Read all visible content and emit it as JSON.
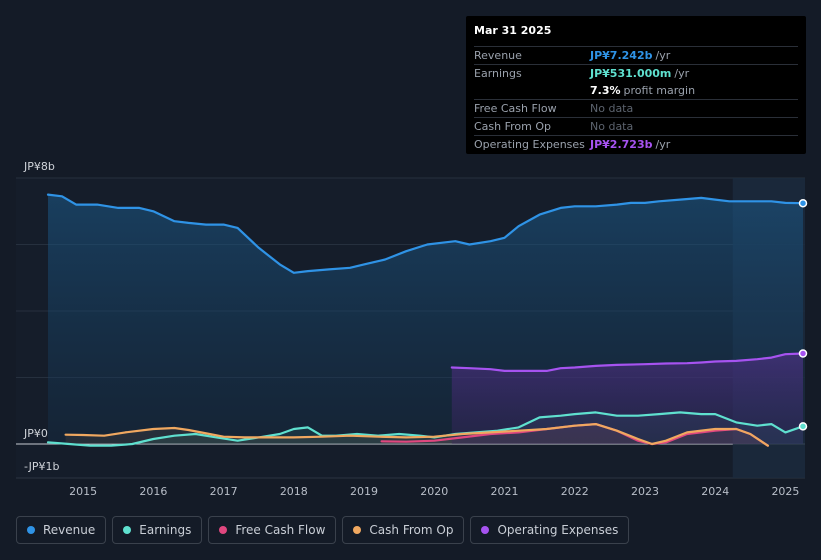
{
  "tooltip": {
    "date": "Mar 31 2025",
    "rows": [
      {
        "label": "Revenue",
        "value": "JP¥7.242b",
        "unit": "/yr",
        "color": "#2f93e6"
      },
      {
        "label": "Earnings",
        "value": "JP¥531.000m",
        "unit": "/yr",
        "color": "#5fe0cf"
      },
      {
        "margin": "7.3%",
        "margin_text": "profit margin"
      },
      {
        "label": "Free Cash Flow",
        "nodata": "No data"
      },
      {
        "label": "Cash From Op",
        "nodata": "No data"
      },
      {
        "label": "Operating Expenses",
        "value": "JP¥2.723b",
        "unit": "/yr",
        "color": "#a653f0"
      }
    ]
  },
  "axis": {
    "top_label": "JP¥8b",
    "zero_label": "JP¥0",
    "neg_label": "-JP¥1b"
  },
  "legend": [
    {
      "label": "Revenue",
      "color": "#2f93e6"
    },
    {
      "label": "Earnings",
      "color": "#5fe0cf"
    },
    {
      "label": "Free Cash Flow",
      "color": "#e0477f"
    },
    {
      "label": "Cash From Op",
      "color": "#f0a860"
    },
    {
      "label": "Operating Expenses",
      "color": "#a653f0"
    }
  ],
  "chart_data": {
    "type": "line",
    "title": "",
    "ylabel": "JP¥",
    "ylim": [
      -1,
      8
    ],
    "yticks": [
      "JP¥8b",
      "JP¥0",
      "-JP¥1b"
    ],
    "xticks": [
      "2015",
      "2016",
      "2017",
      "2018",
      "2019",
      "2020",
      "2021",
      "2022",
      "2023",
      "2024",
      "2025"
    ],
    "xlim": [
      2014.5,
      2025.25
    ],
    "highlight_from": 2024.25,
    "series": [
      {
        "name": "Revenue",
        "color": "#2f93e6",
        "x": [
          2014.5,
          2014.7,
          2014.9,
          2015.2,
          2015.5,
          2015.8,
          2016.0,
          2016.3,
          2016.5,
          2016.75,
          2017.0,
          2017.2,
          2017.5,
          2017.8,
          2018.0,
          2018.2,
          2018.5,
          2018.8,
          2019.0,
          2019.3,
          2019.6,
          2019.9,
          2020.1,
          2020.3,
          2020.5,
          2020.8,
          2021.0,
          2021.2,
          2021.5,
          2021.8,
          2022.0,
          2022.3,
          2022.6,
          2022.8,
          2023.0,
          2023.2,
          2023.5,
          2023.8,
          2024.0,
          2024.2,
          2024.5,
          2024.8,
          2025.0,
          2025.25
        ],
        "y": [
          7.5,
          7.45,
          7.2,
          7.2,
          7.1,
          7.1,
          7.0,
          6.7,
          6.65,
          6.6,
          6.6,
          6.5,
          5.9,
          5.4,
          5.15,
          5.2,
          5.25,
          5.3,
          5.4,
          5.55,
          5.8,
          6.0,
          6.05,
          6.1,
          6.0,
          6.1,
          6.2,
          6.55,
          6.9,
          7.1,
          7.15,
          7.15,
          7.2,
          7.25,
          7.25,
          7.3,
          7.35,
          7.4,
          7.35,
          7.3,
          7.3,
          7.3,
          7.25,
          7.242
        ]
      },
      {
        "name": "Earnings",
        "color": "#5fe0cf",
        "x": [
          2014.5,
          2014.8,
          2015.1,
          2015.4,
          2015.7,
          2016.0,
          2016.3,
          2016.6,
          2016.9,
          2017.2,
          2017.5,
          2017.8,
          2018.0,
          2018.2,
          2018.4,
          2018.6,
          2018.9,
          2019.2,
          2019.5,
          2019.8,
          2020.0,
          2020.3,
          2020.6,
          2020.9,
          2021.2,
          2021.5,
          2021.8,
          2022.0,
          2022.3,
          2022.6,
          2022.9,
          2023.2,
          2023.5,
          2023.8,
          2024.0,
          2024.3,
          2024.6,
          2024.8,
          2025.0,
          2025.25
        ],
        "y": [
          0.05,
          0.0,
          -0.05,
          -0.05,
          0.0,
          0.15,
          0.25,
          0.3,
          0.2,
          0.1,
          0.2,
          0.3,
          0.45,
          0.5,
          0.25,
          0.25,
          0.3,
          0.25,
          0.3,
          0.25,
          0.2,
          0.3,
          0.35,
          0.4,
          0.5,
          0.8,
          0.85,
          0.9,
          0.95,
          0.85,
          0.85,
          0.9,
          0.95,
          0.9,
          0.9,
          0.65,
          0.55,
          0.6,
          0.35,
          0.531
        ]
      },
      {
        "name": "Free Cash Flow",
        "color": "#e0477f",
        "x": [
          2019.25,
          2019.6,
          2020.0,
          2020.4,
          2020.8,
          2021.2,
          2021.6,
          2022.0,
          2022.3,
          2022.6,
          2022.9,
          2023.1,
          2023.3,
          2023.6,
          2024.0,
          2024.3,
          2024.5,
          2024.75
        ],
        "y": [
          0.08,
          0.07,
          0.1,
          0.2,
          0.3,
          0.35,
          0.45,
          0.55,
          0.6,
          0.4,
          0.1,
          0.0,
          0.05,
          0.3,
          0.4,
          0.45,
          0.3,
          -0.05
        ]
      },
      {
        "name": "Cash From Op",
        "color": "#f0a860",
        "x": [
          2014.75,
          2015.0,
          2015.3,
          2015.6,
          2016.0,
          2016.3,
          2016.5,
          2016.8,
          2017.0,
          2017.3,
          2017.6,
          2018.0,
          2018.4,
          2018.8,
          2019.2,
          2019.6,
          2020.0,
          2020.4,
          2020.8,
          2021.2,
          2021.6,
          2022.0,
          2022.3,
          2022.6,
          2022.9,
          2023.1,
          2023.3,
          2023.6,
          2024.0,
          2024.3,
          2024.5,
          2024.75
        ],
        "y": [
          0.28,
          0.27,
          0.25,
          0.35,
          0.45,
          0.48,
          0.42,
          0.3,
          0.22,
          0.2,
          0.2,
          0.2,
          0.22,
          0.25,
          0.22,
          0.2,
          0.22,
          0.3,
          0.35,
          0.4,
          0.45,
          0.55,
          0.6,
          0.4,
          0.15,
          0.0,
          0.1,
          0.35,
          0.45,
          0.45,
          0.3,
          -0.05
        ]
      },
      {
        "name": "Operating Expenses",
        "color": "#a653f0",
        "x": [
          2020.25,
          2020.5,
          2020.8,
          2021.0,
          2021.3,
          2021.6,
          2021.8,
          2022.0,
          2022.3,
          2022.6,
          2023.0,
          2023.3,
          2023.6,
          2023.8,
          2024.0,
          2024.3,
          2024.6,
          2024.8,
          2025.0,
          2025.25
        ],
        "y": [
          2.3,
          2.28,
          2.25,
          2.2,
          2.2,
          2.2,
          2.28,
          2.3,
          2.35,
          2.38,
          2.4,
          2.42,
          2.43,
          2.45,
          2.48,
          2.5,
          2.55,
          2.6,
          2.7,
          2.723
        ]
      }
    ]
  }
}
